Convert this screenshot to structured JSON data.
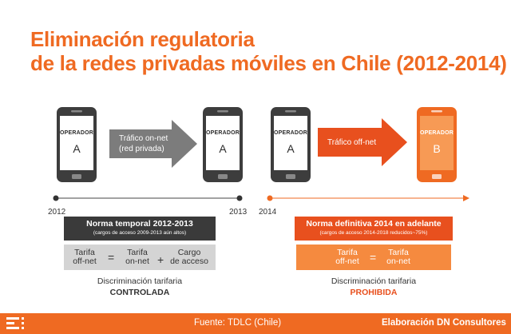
{
  "title": {
    "line1": "Eliminación regulatoria",
    "line2": "de la redes privadas móviles en Chile (2012-2014)"
  },
  "phones": [
    {
      "label": "OPERADOR",
      "letter": "A"
    },
    {
      "label": "OPERADOR",
      "letter": "A"
    },
    {
      "label": "OPERADOR",
      "letter": "A"
    },
    {
      "label": "OPERADOR",
      "letter": "B"
    }
  ],
  "arrows": {
    "on_net_line1": "Tráfico on-net",
    "on_net_line2": "(red privada)",
    "off_net": "Tráfico off-net"
  },
  "timeline": {
    "years": [
      "2012",
      "2013",
      "2014"
    ]
  },
  "left_box": {
    "heading": "Norma temporal 2012-2013",
    "subheading": "(cargos de acceso 2009-2013 aún altos)",
    "term1_line1": "Tarifa",
    "term1_line2": "off-net",
    "eq": "=",
    "term2_line1": "Tarifa",
    "term2_line2": "on-net",
    "plus": "+",
    "term3_line1": "Cargo",
    "term3_line2": "de acceso",
    "discrimination": "Discriminación tarifaria",
    "status": "CONTROLADA"
  },
  "right_box": {
    "heading": "Norma definitiva 2014 en adelante",
    "subheading": "(cargos de acceso 2014-2018 reducidos~75%)",
    "term1_line1": "Tarifa",
    "term1_line2": "off-net",
    "eq": "=",
    "term2_line1": "Tarifa",
    "term2_line2": "on-net",
    "discrimination": "Discriminación tarifaria",
    "status": "PROHIBIDA"
  },
  "footer": {
    "source": "Fuente: TDLC (Chile)",
    "credit": "Elaboración DN Consultores"
  },
  "colors": {
    "brand_orange": "#ef6a22",
    "dark_gray": "#3a3a3a",
    "arrow_gray": "#7c7c7c",
    "red_orange": "#e8501e",
    "light_gray": "#d4d4d4"
  }
}
